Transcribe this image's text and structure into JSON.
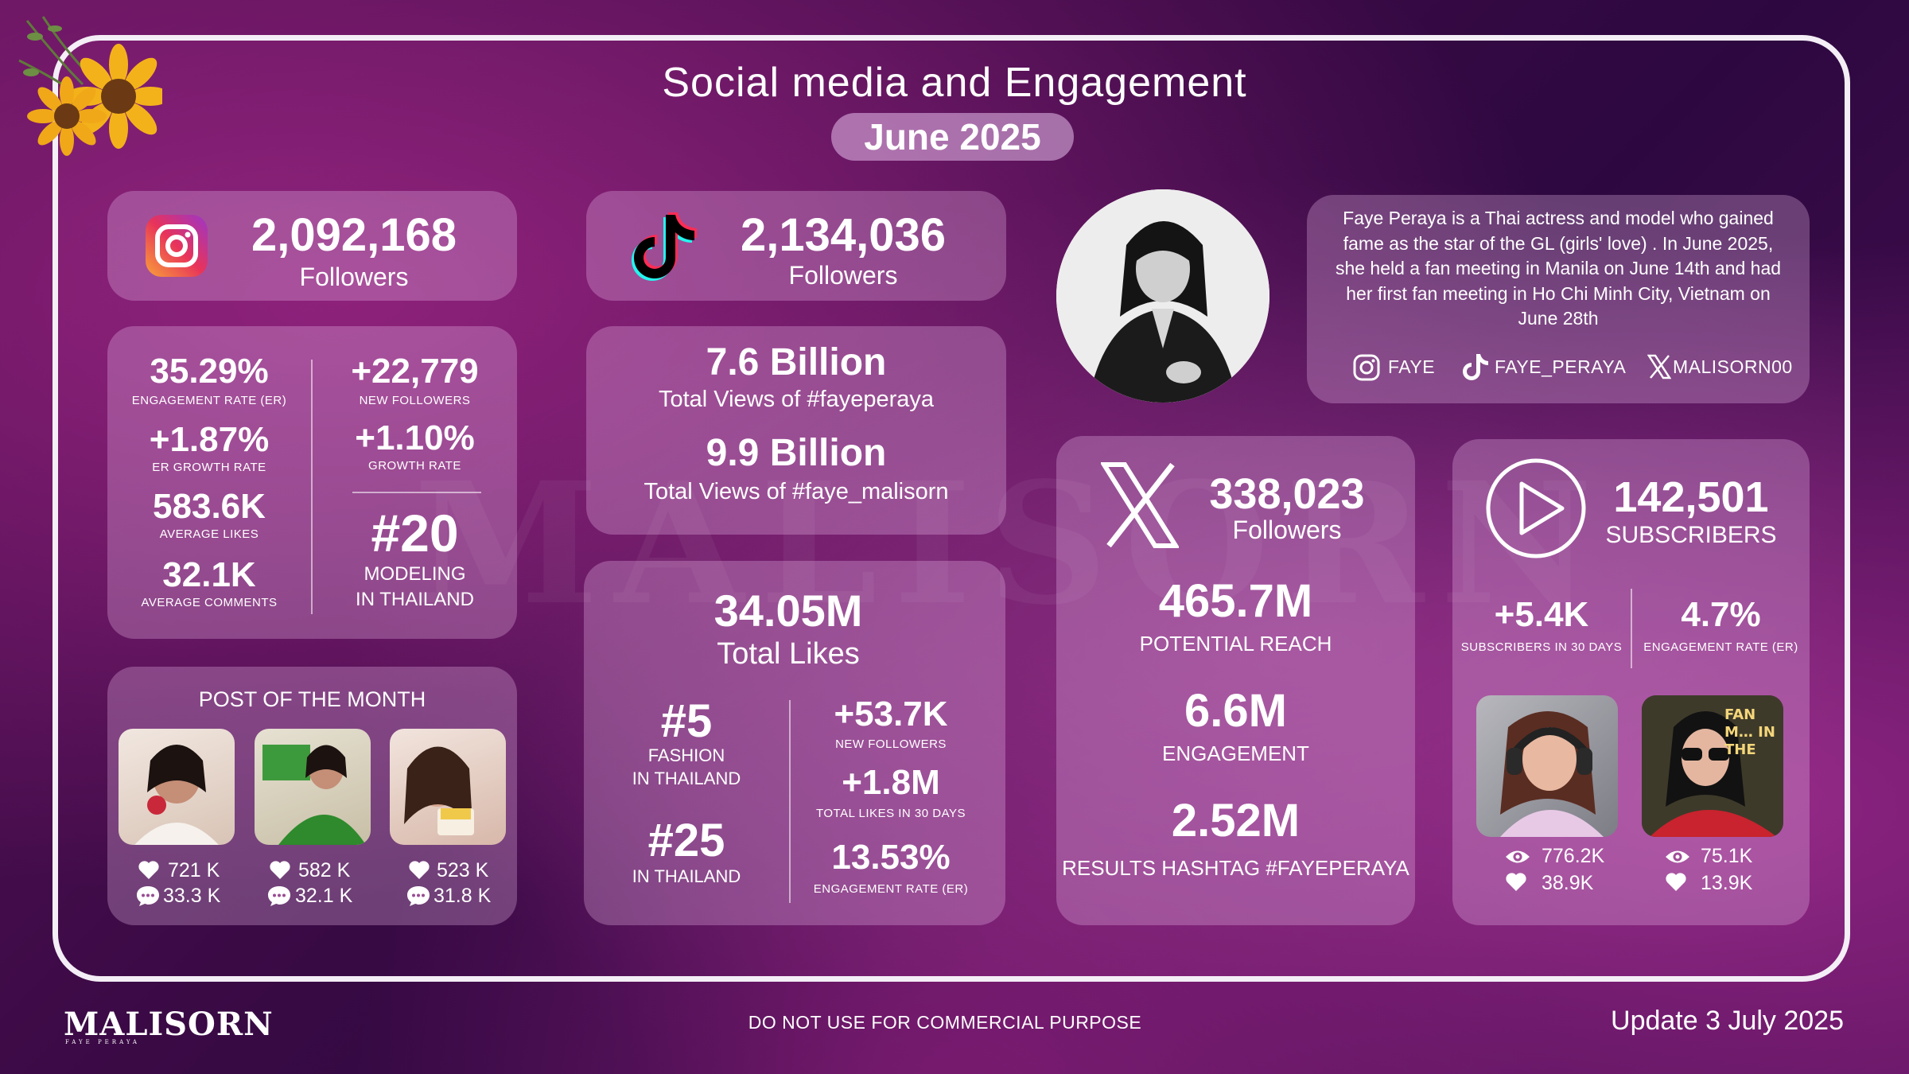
{
  "header": {
    "title": "Social media and Engagement",
    "month": "June 2025"
  },
  "instagram": {
    "followers": "2,092,168",
    "followers_label": "Followers",
    "engagement_rate": "35.29%",
    "engagement_rate_label": "ENGAGEMENT RATE (ER)",
    "new_followers": "+22,779",
    "new_followers_label": "NEW FOLLOWERS",
    "er_growth": "+1.87%",
    "er_growth_label": "ER GROWTH RATE",
    "growth_rate": "+1.10%",
    "growth_rate_label": "GROWTH RATE",
    "avg_likes": "583.6K",
    "avg_likes_label": "AVERAGE LIKES",
    "avg_comments": "32.1K",
    "avg_comments_label": "AVERAGE COMMENTS",
    "rank": "#20",
    "rank_line1": "MODELING",
    "rank_line2": "IN THAILAND",
    "post_of_month_label": "POST OF THE MONTH",
    "posts": [
      {
        "likes": "721 K",
        "comments": "33.3 K"
      },
      {
        "likes": "582 K",
        "comments": "32.1 K"
      },
      {
        "likes": "523 K",
        "comments": "31.8 K"
      }
    ]
  },
  "tiktok": {
    "followers": "2,134,036",
    "followers_label": "Followers",
    "views1": "7.6 Billion",
    "views1_label": "Total Views of #fayeperaya",
    "views2": "9.9 Billion",
    "views2_label": "Total Views of #faye_malisorn",
    "total_likes": "34.05M",
    "total_likes_label": "Total Likes",
    "rank1": "#5",
    "rank1_line1": "FASHION",
    "rank1_line2": "IN THAILAND",
    "rank2": "#25",
    "rank2_line1": "IN THAILAND",
    "new_followers": "+53.7K",
    "new_followers_label": "NEW FOLLOWERS",
    "likes_30": "+1.8M",
    "likes_30_label": "TOTAL LIKES IN 30 DAYS",
    "er": "13.53%",
    "er_label": "ENGAGEMENT RATE (ER)"
  },
  "bio": {
    "text": "Faye Peraya is a Thai actress and model who gained fame as the star of the GL (girls' love) . In June 2025, she held a fan meeting in Manila on June 14th and had her first fan meeting in Ho Chi Minh City, Vietnam on June 28th",
    "handles": {
      "instagram": "FAYE",
      "tiktok": "FAYE_PERAYA",
      "x": "MALISORN00"
    }
  },
  "x": {
    "followers": "338,023",
    "followers_label": "Followers",
    "reach": "465.7M",
    "reach_label": "POTENTIAL REACH",
    "engagement": "6.6M",
    "engagement_label": "ENGAGEMENT",
    "hashtag": "2.52M",
    "hashtag_label": "RESULTS HASHTAG #FAYEPERAYA"
  },
  "youtube": {
    "subscribers": "142,501",
    "subscribers_label": "SUBSCRIBERS",
    "subs_30": "+5.4K",
    "subs_30_label": "SUBSCRIBERS  IN 30 DAYS",
    "er": "4.7%",
    "er_label": "ENGAGEMENT RATE (ER)",
    "videos": [
      {
        "views": "776.2K",
        "likes": "38.9K",
        "overlay": ""
      },
      {
        "views": "75.1K",
        "likes": "13.9K",
        "overlay": "FAN M… IN THE"
      }
    ]
  },
  "footer": {
    "brand": "MALISORN",
    "brand_sub": "FAYE PERAYA",
    "notice": "DO NOT USE FOR COMMERCIAL PURPOSE",
    "update": "Update 3 July 2025"
  },
  "watermark": "MALISORN",
  "colors": {
    "instagram_gradient_start": "#f9a23a",
    "instagram_gradient_end": "#c13584",
    "tiktok_cyan": "#25f4ee",
    "tiktok_red": "#fe2c55"
  }
}
